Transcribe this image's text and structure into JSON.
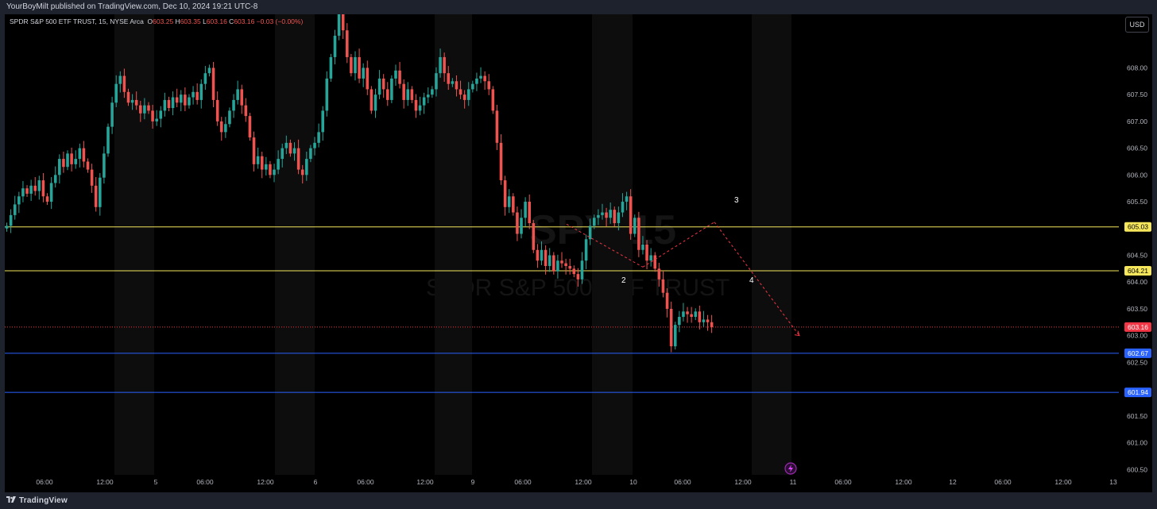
{
  "header": {
    "published_text": "YourBoyMilt published on TradingView.com, Dec 10, 2024 19:21 UTC-8"
  },
  "legend": {
    "symbol": "SPDR S&P 500 ETF TRUST, 15, NYSE Arca",
    "o_label": "O",
    "o_value": "603.25",
    "h_label": "H",
    "h_value": "603.35",
    "l_label": "L",
    "l_value": "603.16",
    "c_label": "C",
    "c_value": "603.16",
    "change": "−0.03 (−0.00%)"
  },
  "currency_button": "USD",
  "watermark": {
    "ticker_line": "SPY, 15",
    "name_line": "SPDR S&P 500 ETF TRUST"
  },
  "footer": {
    "brand": "TradingView"
  },
  "colors": {
    "up": "#26a69a",
    "down": "#ef5350",
    "resistance": "#f5e65b",
    "support": "#2962ff",
    "last_price": "#f23645",
    "session_shade": "#0d0d0d"
  },
  "chart_data": {
    "type": "candlestick",
    "interval": "15",
    "yrange": [
      600.4,
      609.0
    ],
    "y_ticks": [
      "608.00",
      "607.50",
      "607.00",
      "606.50",
      "606.00",
      "605.50",
      "604.50",
      "604.00",
      "603.50",
      "603.00",
      "602.50",
      "601.50",
      "601.00",
      "600.50"
    ],
    "x_ticks": [
      "06:00",
      "12:00",
      "5",
      "06:00",
      "12:00",
      "6",
      "06:00",
      "12:00",
      "9",
      "06:00",
      "12:00",
      "10",
      "06:00",
      "12:00",
      "11",
      "06:00",
      "12:00",
      "12",
      "06:00",
      "12:00",
      "13"
    ],
    "horizontal_levels": [
      {
        "value": 605.03,
        "label": "605.03",
        "color": "#f5e65b"
      },
      {
        "value": 604.21,
        "label": "604.21",
        "color": "#f5e65b"
      },
      {
        "value": 603.16,
        "label": "603.16",
        "color": "#f23645",
        "style": "dotted"
      },
      {
        "value": 602.67,
        "label": "602.67",
        "color": "#2962ff"
      },
      {
        "value": 601.94,
        "label": "601.94",
        "color": "#2962ff"
      }
    ],
    "wave_labels": [
      {
        "text": "2",
        "price": 604.05
      },
      {
        "text": "3",
        "price": 605.28
      },
      {
        "text": "4",
        "price": 604.05
      }
    ],
    "wave_path": [
      {
        "bar": 0,
        "price": 605.08
      },
      {
        "bar": 1,
        "price": 604.28
      },
      {
        "bar": 2,
        "price": 605.12
      },
      {
        "bar": 3,
        "price": 603.0
      }
    ],
    "closes": [
      605.05,
      605.25,
      605.45,
      605.6,
      605.75,
      605.65,
      605.8,
      605.7,
      605.9,
      605.6,
      605.5,
      605.85,
      606.0,
      606.3,
      606.15,
      606.4,
      606.2,
      606.3,
      606.5,
      606.25,
      606.1,
      605.8,
      605.4,
      605.95,
      606.4,
      606.9,
      607.35,
      607.7,
      607.85,
      607.55,
      607.35,
      607.4,
      607.3,
      607.15,
      607.3,
      607.2,
      607.0,
      607.05,
      607.2,
      607.4,
      607.25,
      607.45,
      607.35,
      607.5,
      607.3,
      607.45,
      607.55,
      607.4,
      607.7,
      607.9,
      608.0,
      607.4,
      607.0,
      606.8,
      606.95,
      607.2,
      607.4,
      607.6,
      607.3,
      607.1,
      606.7,
      606.2,
      606.35,
      606.1,
      606.2,
      606.0,
      606.1,
      606.3,
      606.5,
      606.6,
      606.4,
      606.5,
      606.1,
      606.0,
      606.3,
      606.5,
      606.6,
      606.8,
      607.2,
      607.8,
      608.2,
      608.6,
      609.0,
      608.7,
      608.2,
      607.9,
      608.2,
      607.8,
      608.0,
      607.6,
      607.2,
      607.5,
      607.8,
      607.6,
      607.4,
      607.8,
      607.95,
      607.7,
      607.4,
      607.6,
      607.4,
      607.2,
      607.3,
      607.45,
      607.5,
      607.6,
      607.9,
      608.2,
      607.9,
      607.7,
      607.75,
      607.6,
      607.5,
      607.4,
      607.6,
      607.7,
      607.8,
      607.85,
      607.75,
      607.6,
      607.2,
      606.6,
      605.9,
      605.4,
      605.6,
      605.3,
      604.9,
      605.2,
      605.5,
      605.1,
      604.6,
      604.4,
      604.6,
      604.3,
      604.5,
      604.2,
      604.4,
      604.35,
      604.3,
      604.25,
      604.15,
      604.05,
      604.4,
      604.8,
      605.05,
      605.2,
      605.25,
      605.3,
      605.2,
      605.35,
      605.1,
      605.3,
      605.5,
      605.6,
      604.9,
      605.2,
      604.6,
      604.7,
      604.4,
      604.5,
      604.25,
      604.05,
      603.8,
      603.5,
      602.8,
      603.2,
      603.35,
      603.45,
      603.4,
      603.35,
      603.45,
      603.25,
      603.3,
      603.25,
      603.16
    ],
    "start_bar_index": 0,
    "total_slots": 275
  }
}
